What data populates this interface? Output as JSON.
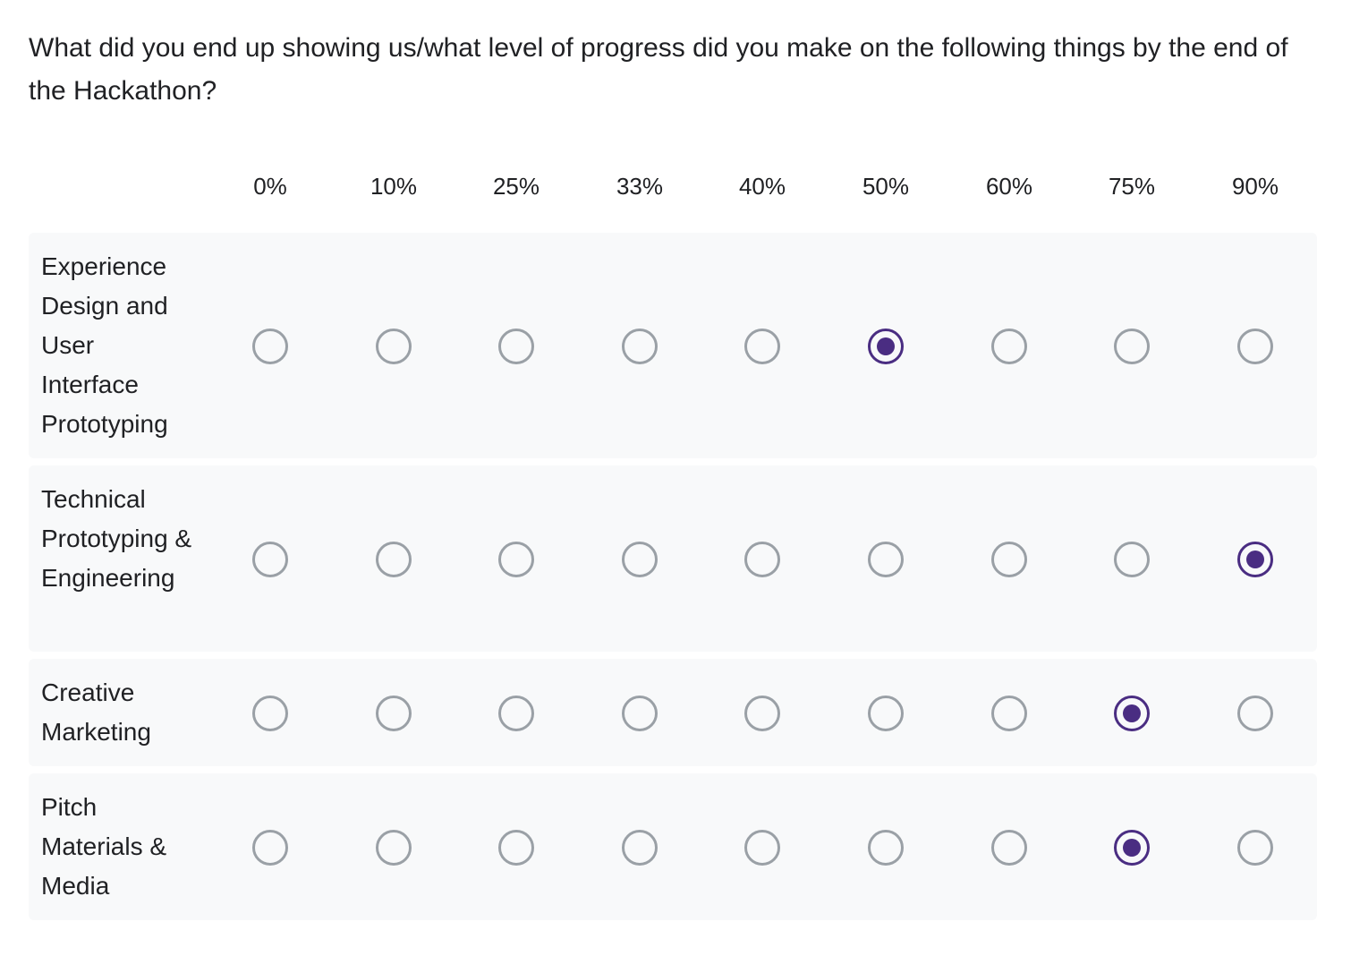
{
  "question": {
    "title": "What did you end up showing us/what level of progress did you make on the following things by the end of the Hackathon?"
  },
  "columns": [
    "0%",
    "10%",
    "25%",
    "33%",
    "40%",
    "50%",
    "60%",
    "75%",
    "90%"
  ],
  "rows": [
    {
      "label": "Experience Design and User Interface Prototyping",
      "selected": "50%"
    },
    {
      "label": "Technical Prototyping & Engineering",
      "selected": "90%"
    },
    {
      "label": "Creative Marketing",
      "selected": "75%"
    },
    {
      "label": "Pitch Materials & Media",
      "selected": "75%"
    }
  ],
  "colors": {
    "accent": "#4a2d82",
    "radio_unchecked": "#9aa0a6",
    "row_background": "#f8f9fa"
  }
}
